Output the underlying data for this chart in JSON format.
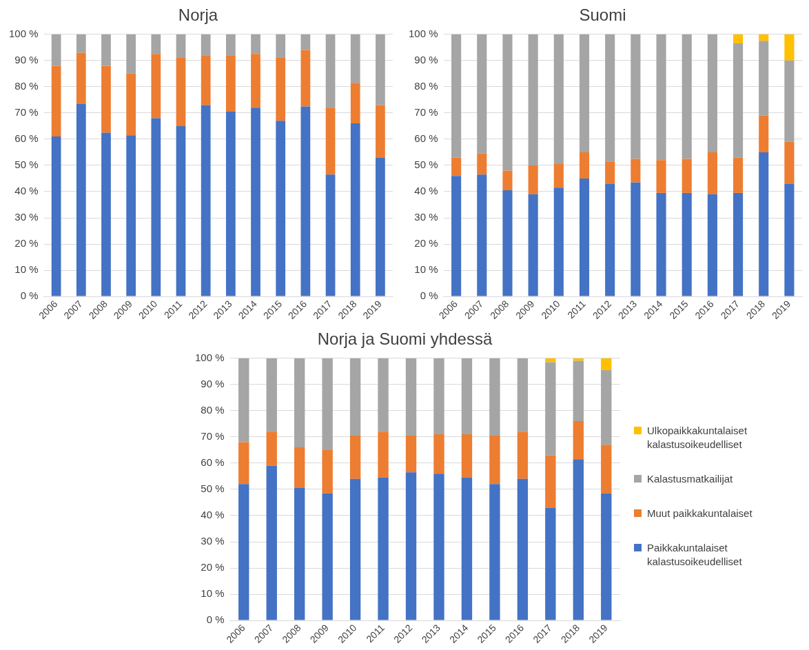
{
  "chart_data": [
    {
      "type": "bar",
      "title": "Norja",
      "stacked": true,
      "grid": "y",
      "legend": false,
      "categories": [
        "2006",
        "2007",
        "2008",
        "2009",
        "2010",
        "2011",
        "2012",
        "2013",
        "2014",
        "2015",
        "2016",
        "2017",
        "2018",
        "2019"
      ],
      "ylim": [
        0,
        100
      ],
      "yticks": [
        {
          "value": 0,
          "label": "0 %"
        },
        {
          "value": 10,
          "label": "10 %"
        },
        {
          "value": 20,
          "label": "20 %"
        },
        {
          "value": 30,
          "label": "30 %"
        },
        {
          "value": 40,
          "label": "40 %"
        },
        {
          "value": 50,
          "label": "50 %"
        },
        {
          "value": 60,
          "label": "60 %"
        },
        {
          "value": 70,
          "label": "70 %"
        },
        {
          "value": 80,
          "label": "80 %"
        },
        {
          "value": 90,
          "label": "90 %"
        },
        {
          "value": 100,
          "label": "100 %"
        }
      ],
      "series": [
        {
          "color": "#4472c4",
          "values": [
            61,
            73.5,
            62.5,
            61.5,
            68,
            65,
            73,
            70.5,
            72,
            67,
            72.5,
            46.5,
            66,
            53
          ]
        },
        {
          "color": "#ed7d31",
          "values": [
            27,
            19.5,
            25.5,
            23.5,
            24.5,
            26,
            19,
            21.5,
            20.5,
            24,
            21.5,
            25.5,
            15.5,
            20
          ]
        },
        {
          "color": "#a5a5a5",
          "values": [
            12,
            7,
            12,
            15,
            7.5,
            9,
            8,
            8,
            7.5,
            9,
            6,
            28,
            18.5,
            27
          ]
        }
      ]
    },
    {
      "type": "bar",
      "title": "Suomi",
      "stacked": true,
      "grid": "y",
      "legend": false,
      "categories": [
        "2006",
        "2007",
        "2008",
        "2009",
        "2010",
        "2011",
        "2012",
        "2013",
        "2014",
        "2015",
        "2016",
        "2017",
        "2018",
        "2019"
      ],
      "ylim": [
        0,
        100
      ],
      "yticks": [
        {
          "value": 0,
          "label": "0 %"
        },
        {
          "value": 10,
          "label": "10 %"
        },
        {
          "value": 20,
          "label": "20 %"
        },
        {
          "value": 30,
          "label": "30 %"
        },
        {
          "value": 40,
          "label": "40 %"
        },
        {
          "value": 50,
          "label": "50 %"
        },
        {
          "value": 60,
          "label": "60 %"
        },
        {
          "value": 70,
          "label": "70 %"
        },
        {
          "value": 80,
          "label": "80 %"
        },
        {
          "value": 90,
          "label": "90 %"
        },
        {
          "value": 100,
          "label": "100 %"
        }
      ],
      "series": [
        {
          "color": "#4472c4",
          "values": [
            46,
            46.5,
            40.5,
            39,
            41.5,
            45,
            43,
            43.5,
            39.5,
            39.5,
            39,
            39.5,
            55,
            43
          ]
        },
        {
          "color": "#ed7d31",
          "values": [
            7,
            8,
            7.5,
            11,
            9,
            10,
            8.5,
            9,
            12.5,
            13,
            16,
            13.5,
            14,
            16
          ]
        },
        {
          "color": "#a5a5a5",
          "values": [
            47,
            45.5,
            52,
            50,
            49.5,
            45,
            48.5,
            47.5,
            48,
            47.5,
            45,
            43.5,
            28.5,
            31
          ]
        },
        {
          "color": "#ffc000",
          "values": [
            null,
            null,
            null,
            null,
            null,
            null,
            null,
            null,
            null,
            null,
            null,
            3.5,
            2.5,
            10
          ]
        }
      ]
    },
    {
      "type": "bar",
      "title": "Norja ja Suomi yhdessä",
      "stacked": true,
      "grid": "y",
      "legend": "right",
      "categories": [
        "2006",
        "2007",
        "2008",
        "2009",
        "2010",
        "2011",
        "2012",
        "2013",
        "2014",
        "2015",
        "2016",
        "2017",
        "2018",
        "2019"
      ],
      "ylim": [
        0,
        100
      ],
      "yticks": [
        {
          "value": 0,
          "label": "0 %"
        },
        {
          "value": 10,
          "label": "10 %"
        },
        {
          "value": 20,
          "label": "20 %"
        },
        {
          "value": 30,
          "label": "30 %"
        },
        {
          "value": 40,
          "label": "40 %"
        },
        {
          "value": 50,
          "label": "50 %"
        },
        {
          "value": 60,
          "label": "60 %"
        },
        {
          "value": 70,
          "label": "70 %"
        },
        {
          "value": 80,
          "label": "80 %"
        },
        {
          "value": 90,
          "label": "90 %"
        },
        {
          "value": 100,
          "label": "100 %"
        }
      ],
      "series": [
        {
          "name": "Paikkakuntalaiset kalastusoikeudelliset",
          "color": "#4472c4",
          "values": [
            52,
            59,
            50.5,
            48.5,
            54,
            54.5,
            56.5,
            56,
            54.5,
            52,
            54,
            43,
            61.5,
            48.5
          ]
        },
        {
          "name": "Muut paikkakuntalaiset",
          "color": "#ed7d31",
          "values": [
            16,
            13,
            15.5,
            16.5,
            16.5,
            17.5,
            14,
            15,
            16.5,
            18.5,
            18,
            20,
            14.5,
            18.5
          ]
        },
        {
          "name": "Kalastusmatkailijat",
          "color": "#a5a5a5",
          "values": [
            32,
            28,
            34,
            35,
            29.5,
            28,
            29.5,
            29,
            29,
            29.5,
            28,
            35.5,
            23,
            28.5
          ]
        },
        {
          "name": "Ulkopaikkakuntalaiset kalastusoikeudelliset",
          "color": "#ffc000",
          "values": [
            null,
            null,
            null,
            null,
            null,
            null,
            null,
            null,
            null,
            null,
            null,
            1.5,
            1,
            4.5
          ]
        }
      ]
    }
  ]
}
